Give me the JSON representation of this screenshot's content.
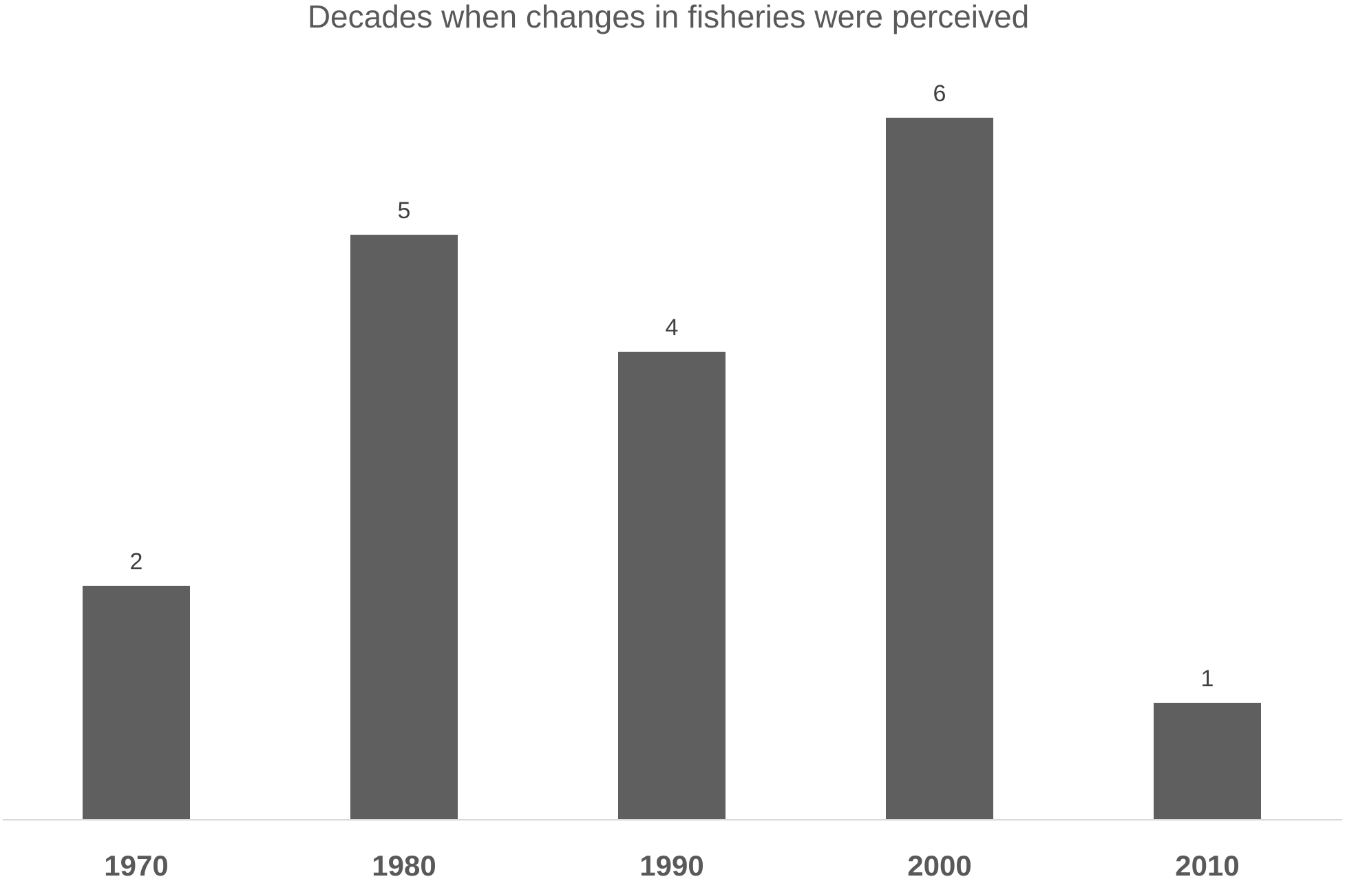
{
  "chart_data": {
    "type": "bar",
    "title": "Decades when changes in fisheries were perceived",
    "categories": [
      "1970",
      "1980",
      "1990",
      "2000",
      "2010"
    ],
    "values": [
      2,
      5,
      4,
      6,
      1
    ],
    "xlabel": "",
    "ylabel": "",
    "ylim": [
      0,
      6
    ],
    "grid": false,
    "legend": "none",
    "data_labels": true,
    "colors": {
      "bar": "#5f5f5f",
      "axis": "#d9d9d9",
      "title": "#595959",
      "tick_label": "#595959",
      "data_label": "#404040"
    }
  }
}
